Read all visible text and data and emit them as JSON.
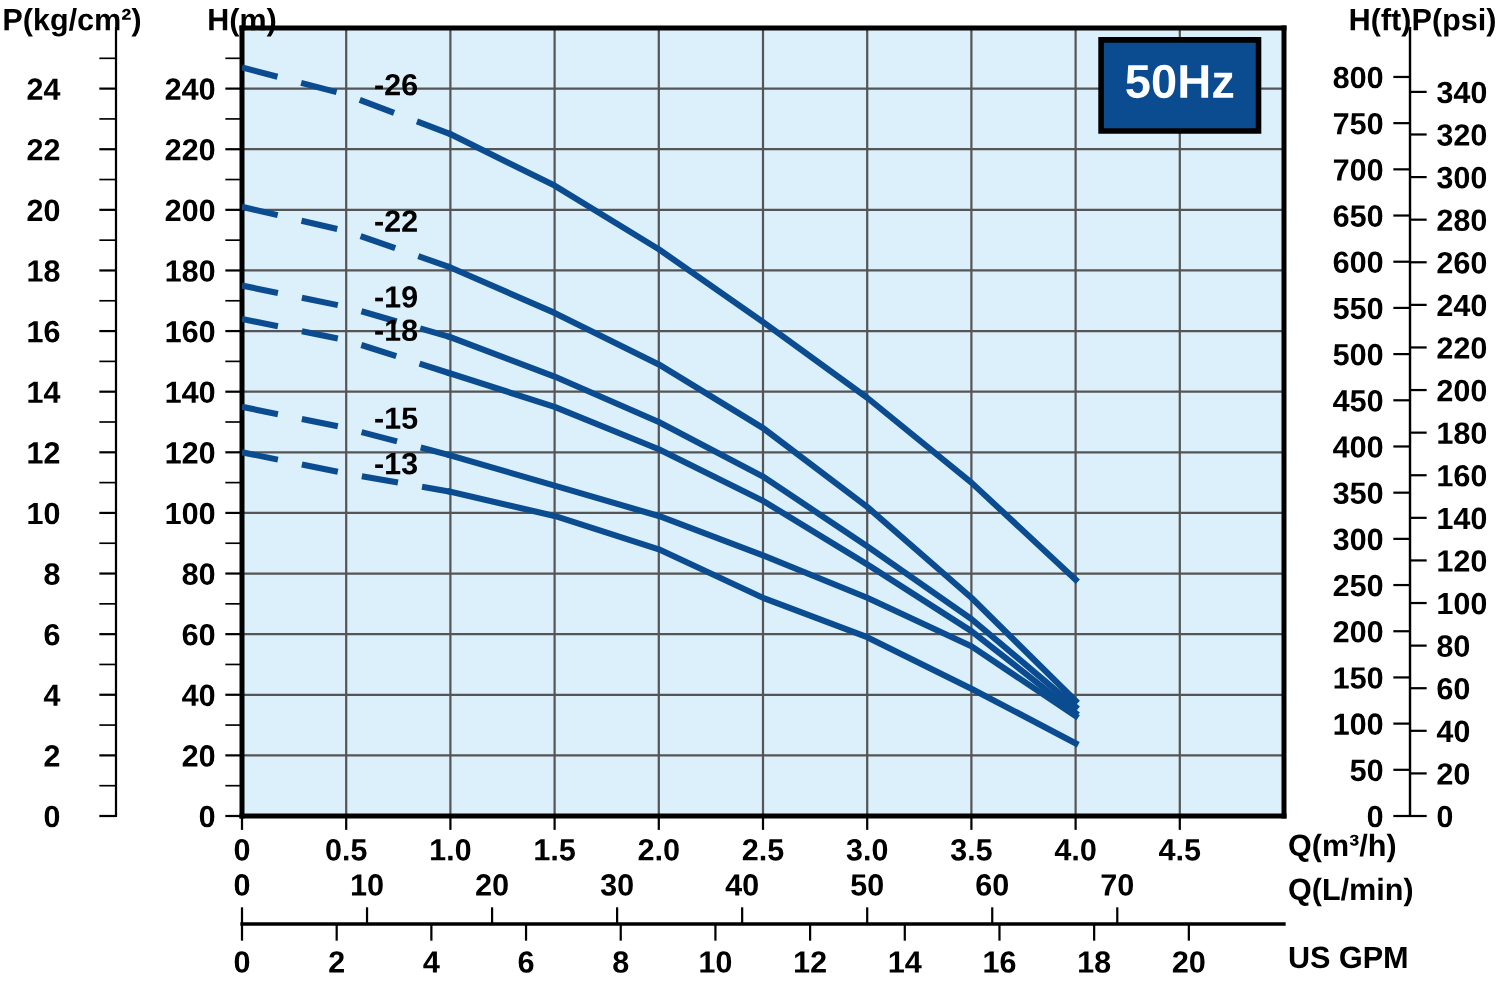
{
  "chart_data": {
    "type": "line",
    "title": "50Hz",
    "xlabel": "Q(m³/h)",
    "ylabel": "H(m)",
    "y2label": "H(ft)",
    "y3label": "P(psi)",
    "xlim": [
      0,
      5
    ],
    "xticks": [
      0,
      0.5,
      {
        "value": 1,
        "label": "1.0"
      },
      1.5,
      {
        "value": 2,
        "label": "2.0"
      },
      2.5,
      {
        "value": 3,
        "label": "3.0"
      },
      3.5,
      {
        "value": 4,
        "label": "4.0"
      },
      4.5
    ],
    "ylim": [
      0,
      260
    ],
    "yticks": [
      0,
      {
        "value": 10,
        "label": null
      },
      20,
      {
        "value": 30,
        "label": null
      },
      40,
      {
        "value": 50,
        "label": null
      },
      60,
      {
        "value": 70,
        "label": null
      },
      80,
      {
        "value": 90,
        "label": null
      },
      100,
      {
        "value": 110,
        "label": null
      },
      120,
      {
        "value": 130,
        "label": null
      },
      140,
      {
        "value": 150,
        "label": null
      },
      160,
      {
        "value": 170,
        "label": null
      },
      180,
      {
        "value": 190,
        "label": null
      },
      200,
      {
        "value": 210,
        "label": null
      },
      220,
      {
        "value": 230,
        "label": null
      },
      240,
      {
        "value": 250,
        "label": null
      }
    ],
    "y2lim": [
      0,
      853
    ],
    "y2ticks": [
      0,
      50,
      100,
      150,
      200,
      250,
      300,
      350,
      400,
      450,
      500,
      550,
      600,
      650,
      700,
      750,
      800
    ],
    "y3lim": [
      0,
      370
    ],
    "y3ticks": [
      0,
      20,
      40,
      60,
      80,
      100,
      120,
      140,
      160,
      180,
      200,
      220,
      240,
      260,
      280,
      300,
      320,
      340
    ],
    "x2label": "US GPM",
    "x2lim": [
      0,
      22.01
    ],
    "x2ticks": [
      0,
      2,
      4,
      6,
      8,
      10,
      12,
      14,
      16,
      18,
      20
    ],
    "grid": true,
    "legend": false,
    "marker": "none",
    "annotations": [
      "P(kg/cm²)",
      "Q(L/min)",
      "0",
      "2",
      "4",
      "6",
      "8",
      "10",
      "12",
      "14",
      "16",
      "18",
      "20",
      "22",
      "24",
      "0",
      "10",
      "20",
      "30",
      "40",
      "50",
      "60",
      "70"
    ],
    "series": [
      {
        "name": "-26",
        "color": "#0b4c91",
        "line_style": "dashed",
        "x": [
          0,
          0.5,
          1.0
        ],
        "values": [
          247,
          238,
          225
        ]
      },
      {
        "color": "#0b4c91",
        "line_style": "solid",
        "x": [
          1.0,
          1.5,
          2.0,
          2.5,
          3.0,
          3.5,
          4.0
        ],
        "values": [
          225,
          208,
          187,
          163,
          138,
          110,
          78
        ]
      },
      {
        "name": "-22",
        "color": "#0b4c91",
        "line_style": "dashed",
        "x": [
          0,
          0.5,
          1.0
        ],
        "values": [
          201,
          193,
          181
        ]
      },
      {
        "color": "#0b4c91",
        "line_style": "solid",
        "x": [
          1.0,
          1.5,
          2.0,
          2.5,
          3.0,
          3.5,
          4.0
        ],
        "values": [
          181,
          166,
          149,
          128,
          102,
          72,
          38
        ]
      },
      {
        "name": "-19",
        "color": "#0b4c91",
        "line_style": "dashed",
        "x": [
          0,
          0.5,
          1.0
        ],
        "values": [
          175,
          168,
          158
        ]
      },
      {
        "color": "#0b4c91",
        "line_style": "solid",
        "x": [
          1.0,
          1.5,
          2.0,
          2.5,
          3.0,
          3.5,
          4.0
        ],
        "values": [
          158,
          145,
          130,
          112,
          89,
          65,
          36
        ]
      },
      {
        "name": "-18",
        "color": "#0b4c91",
        "line_style": "dashed",
        "x": [
          0,
          0.5,
          1.0
        ],
        "values": [
          164,
          157,
          146
        ]
      },
      {
        "color": "#0b4c91",
        "line_style": "solid",
        "x": [
          1.0,
          1.5,
          2.0,
          2.5,
          3.0,
          3.5,
          4.0
        ],
        "values": [
          146,
          135,
          121,
          104,
          83,
          61,
          34
        ]
      },
      {
        "name": "-15",
        "color": "#0b4c91",
        "line_style": "dashed",
        "x": [
          0,
          0.5,
          1.0
        ],
        "values": [
          135,
          128,
          119
        ]
      },
      {
        "color": "#0b4c91",
        "line_style": "solid",
        "x": [
          1.0,
          1.5,
          2.0,
          2.5,
          3.0,
          3.5,
          4.0
        ],
        "values": [
          119,
          109,
          99,
          86,
          72,
          56,
          33
        ]
      },
      {
        "name": "-13",
        "color": "#0b4c91",
        "line_style": "dashed",
        "x": [
          0,
          0.5,
          1.0
        ],
        "values": [
          120,
          113,
          107
        ]
      },
      {
        "color": "#0b4c91",
        "line_style": "solid",
        "x": [
          1.0,
          1.5,
          2.0,
          2.5,
          3.0,
          3.5,
          4.0
        ],
        "values": [
          107,
          99,
          88,
          72,
          59,
          42,
          24
        ]
      }
    ]
  }
}
